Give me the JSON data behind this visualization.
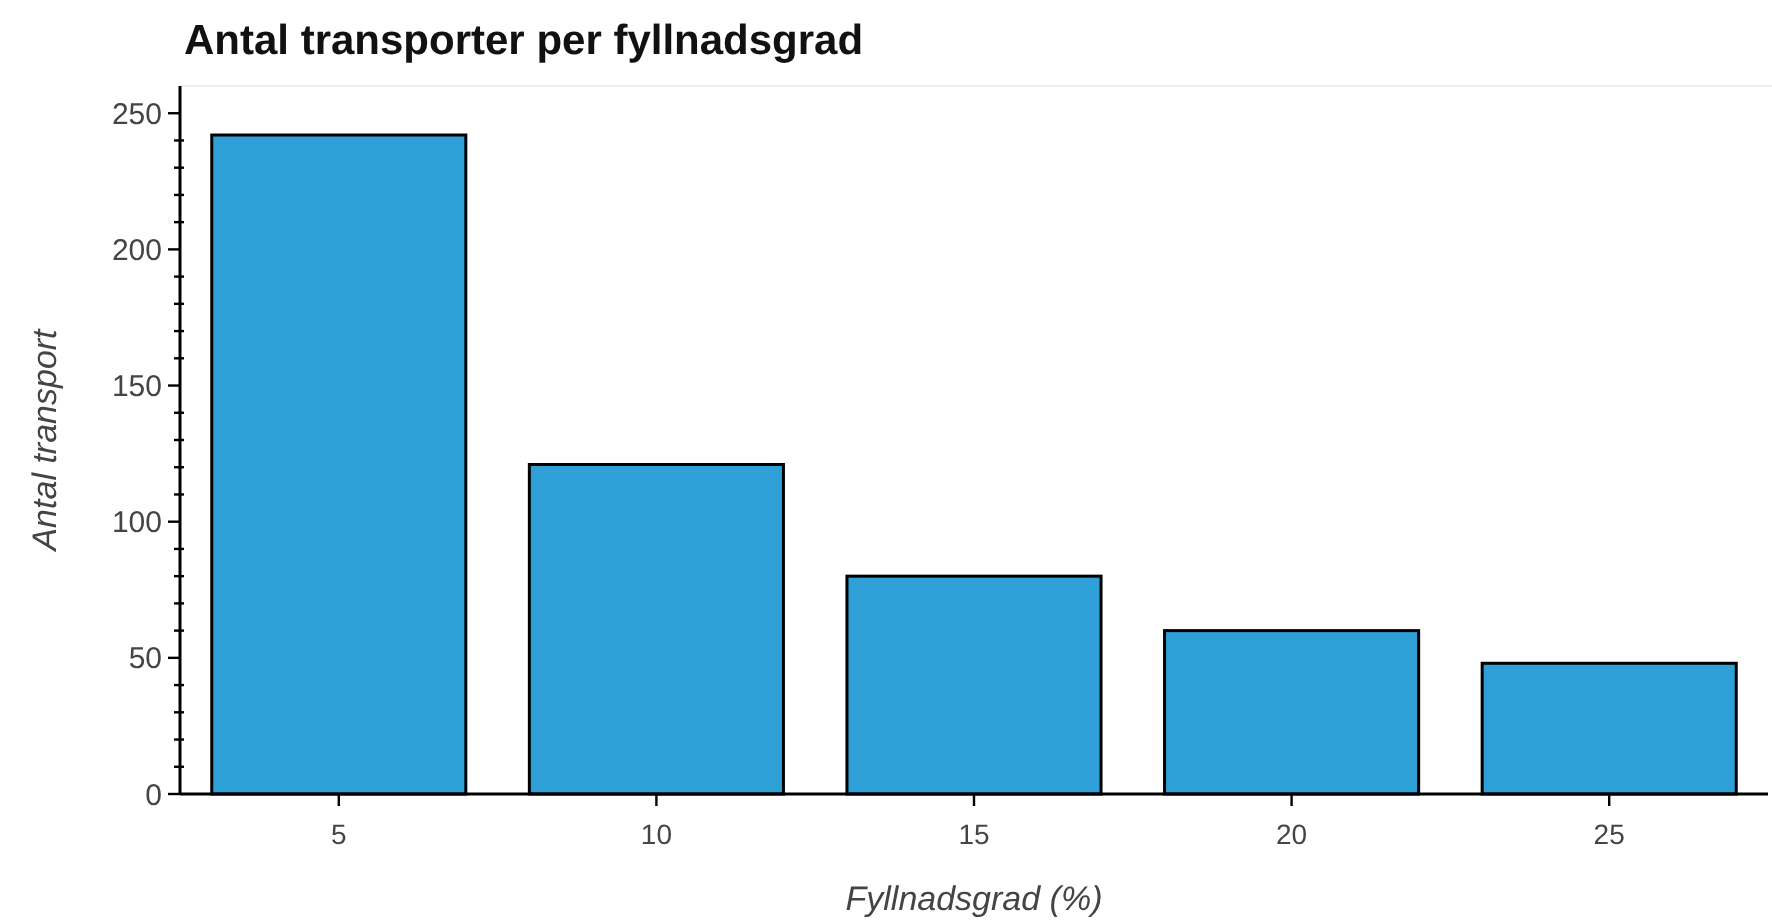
{
  "chart_data": {
    "type": "bar",
    "title": "Antal transporter per fyllnadsgrad",
    "xlabel": "Fyllnadsgrad (%)",
    "ylabel": "Antal transport",
    "categories": [
      "5",
      "10",
      "15",
      "20",
      "25"
    ],
    "values": [
      242,
      121,
      80,
      60,
      48
    ],
    "color": "#2f9fd8",
    "ylim": [
      0,
      260
    ],
    "yticks": [
      0,
      {
        "value": 10,
        "label": null
      },
      {
        "value": 20,
        "label": null
      },
      {
        "value": 30,
        "label": null
      },
      {
        "value": 40,
        "label": null
      },
      50,
      {
        "value": 60,
        "label": null
      },
      {
        "value": 70,
        "label": null
      },
      {
        "value": 80,
        "label": null
      },
      {
        "value": 90,
        "label": null
      },
      100,
      {
        "value": 110,
        "label": null
      },
      {
        "value": 120,
        "label": null
      },
      {
        "value": 130,
        "label": null
      },
      {
        "value": 140,
        "label": null
      },
      150,
      {
        "value": 160,
        "label": null
      },
      {
        "value": 170,
        "label": null
      },
      {
        "value": 180,
        "label": null
      },
      {
        "value": 190,
        "label": null
      },
      200,
      {
        "value": 210,
        "label": null
      },
      {
        "value": 220,
        "label": null
      },
      {
        "value": 230,
        "label": null
      },
      {
        "value": 240,
        "label": null
      },
      250
    ],
    "grid": false
  }
}
